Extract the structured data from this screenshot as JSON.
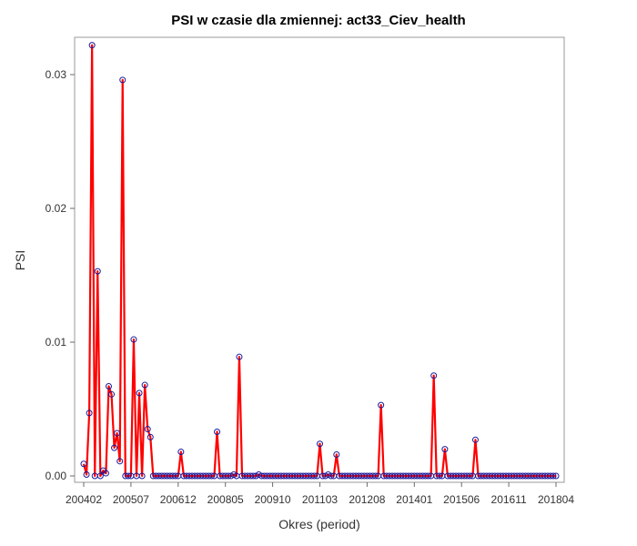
{
  "chart_data": {
    "type": "line",
    "title": "PSI w czasie dla zmiennej: act33_Ciev_health",
    "xlabel": "Okres (period)",
    "ylabel": "PSI",
    "ylim": [
      0,
      0.0325
    ],
    "yticks": [
      0.0,
      0.01,
      0.02,
      0.03
    ],
    "ytick_labels": [
      "0.00",
      "0.01",
      "0.02",
      "0.03"
    ],
    "xtick_labels": [
      "200402",
      "200507",
      "200612",
      "200805",
      "200910",
      "201103",
      "201208",
      "201401",
      "201506",
      "201611",
      "201804"
    ],
    "x_start": "200402",
    "x_end": "201806",
    "grid": false,
    "legend": "none",
    "colors": {
      "line": "#ff0000",
      "marker": "#1a1a9c",
      "frame": "#9a9a9a"
    },
    "series": [
      {
        "values": [
          0.0009,
          0.0001,
          0.0047,
          0.0322,
          0.0,
          0.0153,
          0.0,
          0.0004,
          0.0002,
          0.0067,
          0.0061,
          0.0021,
          0.0032,
          0.0011,
          0.0296,
          0.0,
          0.0,
          0.0,
          0.0102,
          0.0,
          0.0062,
          0.0,
          0.0068,
          0.0035,
          0.0029,
          0.0,
          0.0,
          0.0,
          0.0,
          0.0,
          0.0,
          0.0,
          0.0,
          0.0,
          0.0,
          0.0018,
          0.0,
          0.0,
          0.0,
          0.0,
          0.0,
          0.0,
          0.0,
          0.0,
          0.0,
          0.0,
          0.0,
          0.0,
          0.0033,
          0.0,
          0.0,
          0.0,
          0.0,
          0.0,
          0.0001,
          0.0,
          0.0089,
          0.0,
          0.0,
          0.0,
          0.0,
          0.0,
          0.0,
          0.0001,
          0.0,
          0.0,
          0.0,
          0.0,
          0.0,
          0.0,
          0.0,
          0.0,
          0.0,
          0.0,
          0.0,
          0.0,
          0.0,
          0.0,
          0.0,
          0.0,
          0.0,
          0.0,
          0.0,
          0.0,
          0.0,
          0.0024,
          0.0,
          0.0,
          0.0001,
          0.0,
          0.0,
          0.0016,
          0.0,
          0.0,
          0.0,
          0.0,
          0.0,
          0.0,
          0.0,
          0.0,
          0.0,
          0.0,
          0.0,
          0.0,
          0.0,
          0.0,
          0.0,
          0.0053,
          0.0,
          0.0,
          0.0,
          0.0,
          0.0,
          0.0,
          0.0,
          0.0,
          0.0,
          0.0,
          0.0,
          0.0,
          0.0,
          0.0,
          0.0,
          0.0,
          0.0,
          0.0,
          0.0075,
          0.0,
          0.0,
          0.0,
          0.002,
          0.0,
          0.0,
          0.0,
          0.0,
          0.0,
          0.0,
          0.0,
          0.0,
          0.0,
          0.0,
          0.0027,
          0.0,
          0.0,
          0.0,
          0.0,
          0.0,
          0.0,
          0.0,
          0.0,
          0.0,
          0.0,
          0.0,
          0.0,
          0.0,
          0.0,
          0.0,
          0.0,
          0.0,
          0.0,
          0.0,
          0.0,
          0.0,
          0.0,
          0.0,
          0.0,
          0.0,
          0.0,
          0.0,
          0.0,
          0.0
        ]
      }
    ]
  }
}
